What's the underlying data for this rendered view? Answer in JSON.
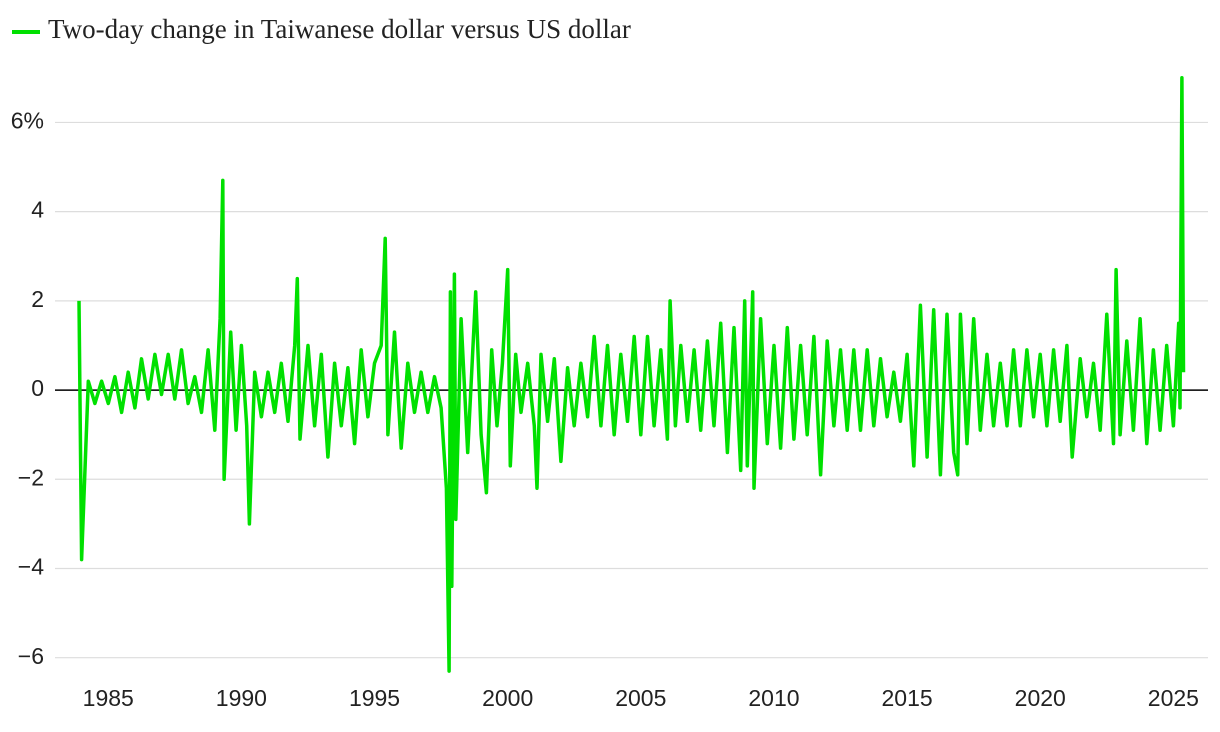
{
  "chart_data": {
    "type": "line",
    "series": [
      {
        "name": "Two-day change in Taiwanese dollar versus US dollar",
        "color": "#00e000",
        "x": [
          1983.9,
          1984.0,
          1984.25,
          1984.5,
          1984.75,
          1985.0,
          1985.25,
          1985.5,
          1985.75,
          1986.0,
          1986.25,
          1986.5,
          1986.75,
          1987.0,
          1987.25,
          1987.5,
          1987.75,
          1988.0,
          1988.25,
          1988.5,
          1988.75,
          1989.0,
          1989.2,
          1989.3,
          1989.35,
          1989.6,
          1989.8,
          1990.0,
          1990.2,
          1990.3,
          1990.5,
          1990.75,
          1991.0,
          1991.25,
          1991.5,
          1991.75,
          1992.0,
          1992.1,
          1992.2,
          1992.5,
          1992.75,
          1993.0,
          1993.25,
          1993.5,
          1993.75,
          1994.0,
          1994.25,
          1994.5,
          1994.75,
          1995.0,
          1995.25,
          1995.4,
          1995.5,
          1995.75,
          1996.0,
          1996.25,
          1996.5,
          1996.75,
          1997.0,
          1997.25,
          1997.5,
          1997.7,
          1997.8,
          1997.85,
          1997.9,
          1998.0,
          1998.05,
          1998.25,
          1998.5,
          1998.8,
          1999.0,
          1999.2,
          1999.4,
          1999.6,
          1999.8,
          2000.0,
          2000.1,
          2000.3,
          2000.5,
          2000.75,
          2001.0,
          2001.1,
          2001.25,
          2001.5,
          2001.75,
          2002.0,
          2002.25,
          2002.5,
          2002.75,
          2003.0,
          2003.25,
          2003.5,
          2003.75,
          2004.0,
          2004.25,
          2004.5,
          2004.75,
          2005.0,
          2005.25,
          2005.5,
          2005.75,
          2006.0,
          2006.1,
          2006.3,
          2006.5,
          2006.75,
          2007.0,
          2007.25,
          2007.5,
          2007.75,
          2008.0,
          2008.25,
          2008.5,
          2008.75,
          2008.9,
          2009.0,
          2009.2,
          2009.25,
          2009.5,
          2009.75,
          2010.0,
          2010.25,
          2010.5,
          2010.75,
          2011.0,
          2011.25,
          2011.5,
          2011.75,
          2012.0,
          2012.25,
          2012.5,
          2012.75,
          2013.0,
          2013.25,
          2013.5,
          2013.75,
          2014.0,
          2014.25,
          2014.5,
          2014.75,
          2015.0,
          2015.25,
          2015.5,
          2015.75,
          2016.0,
          2016.25,
          2016.5,
          2016.75,
          2016.9,
          2017.0,
          2017.25,
          2017.5,
          2017.75,
          2018.0,
          2018.25,
          2018.5,
          2018.75,
          2019.0,
          2019.25,
          2019.5,
          2019.75,
          2020.0,
          2020.25,
          2020.5,
          2020.75,
          2021.0,
          2021.2,
          2021.5,
          2021.75,
          2022.0,
          2022.25,
          2022.5,
          2022.75,
          2022.85,
          2023.0,
          2023.25,
          2023.5,
          2023.75,
          2024.0,
          2024.25,
          2024.5,
          2024.75,
          2025.0,
          2025.2,
          2025.25,
          2025.32,
          2025.38
        ],
        "values": [
          2.0,
          -3.8,
          0.2,
          -0.3,
          0.2,
          -0.3,
          0.3,
          -0.5,
          0.4,
          -0.4,
          0.7,
          -0.2,
          0.8,
          -0.1,
          0.8,
          -0.2,
          0.9,
          -0.3,
          0.3,
          -0.5,
          0.9,
          -0.9,
          1.6,
          4.7,
          -2.0,
          1.3,
          -0.9,
          1.0,
          -0.8,
          -3.0,
          0.4,
          -0.6,
          0.4,
          -0.5,
          0.6,
          -0.7,
          1.0,
          2.5,
          -1.1,
          1.0,
          -0.8,
          0.8,
          -1.5,
          0.6,
          -0.8,
          0.5,
          -1.2,
          0.9,
          -0.6,
          0.6,
          1.0,
          3.4,
          -1.0,
          1.3,
          -1.3,
          0.6,
          -0.5,
          0.4,
          -0.5,
          0.3,
          -0.4,
          -2.2,
          -6.3,
          2.2,
          -4.4,
          2.6,
          -2.9,
          1.6,
          -1.4,
          2.2,
          -1.0,
          -2.3,
          0.9,
          -0.8,
          0.6,
          2.7,
          -1.7,
          0.8,
          -0.5,
          0.6,
          -0.8,
          -2.2,
          0.8,
          -0.7,
          0.7,
          -1.6,
          0.5,
          -0.8,
          0.6,
          -0.6,
          1.2,
          -0.8,
          1.0,
          -1.0,
          0.8,
          -0.7,
          1.2,
          -1.0,
          1.2,
          -0.8,
          0.9,
          -1.1,
          2.0,
          -0.8,
          1.0,
          -0.7,
          0.9,
          -0.9,
          1.1,
          -0.8,
          1.5,
          -1.4,
          1.4,
          -1.8,
          2.0,
          -1.7,
          2.2,
          -2.2,
          1.6,
          -1.2,
          1.0,
          -1.3,
          1.4,
          -1.1,
          1.0,
          -1.0,
          1.2,
          -1.9,
          1.1,
          -0.8,
          0.9,
          -0.9,
          0.9,
          -0.9,
          0.9,
          -0.8,
          0.7,
          -0.6,
          0.4,
          -0.7,
          0.8,
          -1.7,
          1.9,
          -1.5,
          1.8,
          -1.9,
          1.7,
          -1.4,
          -1.9,
          1.7,
          -1.2,
          1.6,
          -0.9,
          0.8,
          -0.8,
          0.6,
          -0.8,
          0.9,
          -0.8,
          0.9,
          -0.6,
          0.8,
          -0.8,
          0.9,
          -0.7,
          1.0,
          -1.5,
          0.7,
          -0.6,
          0.6,
          -0.9,
          1.7,
          -1.2,
          2.7,
          -1.0,
          1.1,
          -0.9,
          1.6,
          -1.2,
          0.9,
          -0.9,
          1.0,
          -0.8,
          1.5,
          -0.4,
          7.0,
          0.4
        ]
      }
    ],
    "xlim": [
      1983,
      2026.3
    ],
    "xticks": [
      1985,
      1990,
      1995,
      2000,
      2005,
      2010,
      2015,
      2020,
      2025
    ],
    "ylim": [
      -6.5,
      7.4
    ],
    "yticks": [
      {
        "value": -6,
        "label": "−6"
      },
      {
        "value": -4,
        "label": "−4"
      },
      {
        "value": -2,
        "label": "−2"
      },
      0,
      2,
      4,
      {
        "value": 6,
        "label": "6%"
      }
    ],
    "grid": true,
    "legend": "top-left"
  }
}
